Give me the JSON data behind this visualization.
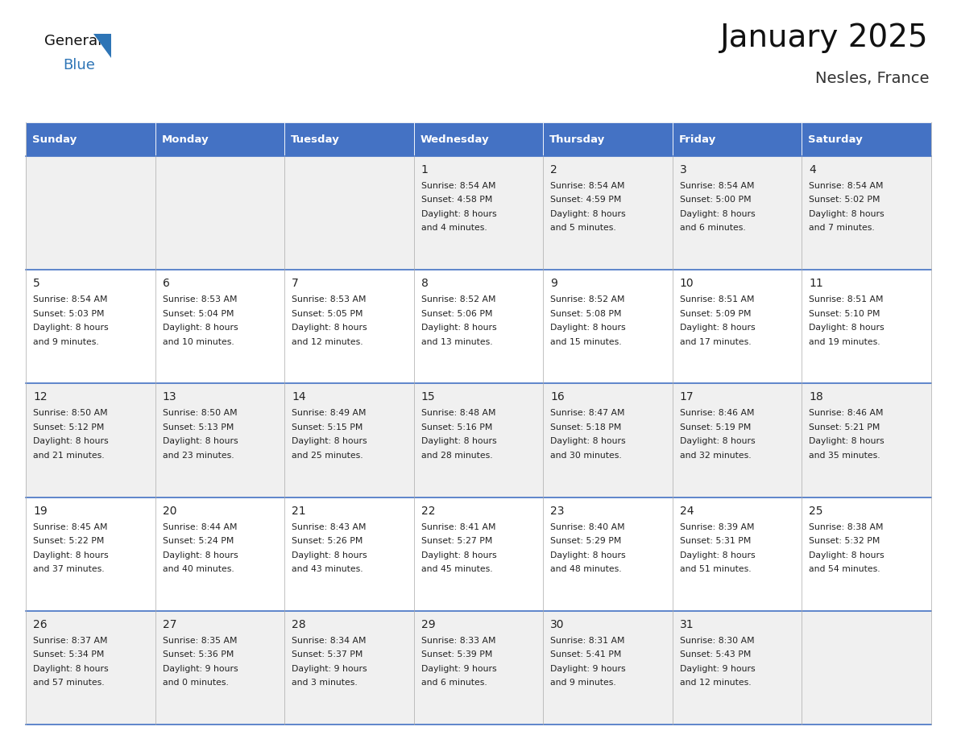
{
  "title": "January 2025",
  "subtitle": "Nesles, France",
  "days_of_week": [
    "Sunday",
    "Monday",
    "Tuesday",
    "Wednesday",
    "Thursday",
    "Friday",
    "Saturday"
  ],
  "header_bg": "#4472C4",
  "header_text": "#FFFFFF",
  "cell_bg_even": "#F0F0F0",
  "cell_bg_odd": "#FFFFFF",
  "cell_border": "#4472C4",
  "day_num_color": "#222222",
  "text_color": "#222222",
  "title_color": "#111111",
  "subtitle_color": "#333333",
  "logo_general_color": "#111111",
  "logo_blue_color": "#2e75b6",
  "calendar_data": [
    [
      null,
      null,
      null,
      {
        "day": 1,
        "sunrise": "8:54 AM",
        "sunset": "4:58 PM",
        "daylight_h": "8 hours",
        "daylight_m": "and 4 minutes."
      },
      {
        "day": 2,
        "sunrise": "8:54 AM",
        "sunset": "4:59 PM",
        "daylight_h": "8 hours",
        "daylight_m": "and 5 minutes."
      },
      {
        "day": 3,
        "sunrise": "8:54 AM",
        "sunset": "5:00 PM",
        "daylight_h": "8 hours",
        "daylight_m": "and 6 minutes."
      },
      {
        "day": 4,
        "sunrise": "8:54 AM",
        "sunset": "5:02 PM",
        "daylight_h": "8 hours",
        "daylight_m": "and 7 minutes."
      }
    ],
    [
      {
        "day": 5,
        "sunrise": "8:54 AM",
        "sunset": "5:03 PM",
        "daylight_h": "8 hours",
        "daylight_m": "and 9 minutes."
      },
      {
        "day": 6,
        "sunrise": "8:53 AM",
        "sunset": "5:04 PM",
        "daylight_h": "8 hours",
        "daylight_m": "and 10 minutes."
      },
      {
        "day": 7,
        "sunrise": "8:53 AM",
        "sunset": "5:05 PM",
        "daylight_h": "8 hours",
        "daylight_m": "and 12 minutes."
      },
      {
        "day": 8,
        "sunrise": "8:52 AM",
        "sunset": "5:06 PM",
        "daylight_h": "8 hours",
        "daylight_m": "and 13 minutes."
      },
      {
        "day": 9,
        "sunrise": "8:52 AM",
        "sunset": "5:08 PM",
        "daylight_h": "8 hours",
        "daylight_m": "and 15 minutes."
      },
      {
        "day": 10,
        "sunrise": "8:51 AM",
        "sunset": "5:09 PM",
        "daylight_h": "8 hours",
        "daylight_m": "and 17 minutes."
      },
      {
        "day": 11,
        "sunrise": "8:51 AM",
        "sunset": "5:10 PM",
        "daylight_h": "8 hours",
        "daylight_m": "and 19 minutes."
      }
    ],
    [
      {
        "day": 12,
        "sunrise": "8:50 AM",
        "sunset": "5:12 PM",
        "daylight_h": "8 hours",
        "daylight_m": "and 21 minutes."
      },
      {
        "day": 13,
        "sunrise": "8:50 AM",
        "sunset": "5:13 PM",
        "daylight_h": "8 hours",
        "daylight_m": "and 23 minutes."
      },
      {
        "day": 14,
        "sunrise": "8:49 AM",
        "sunset": "5:15 PM",
        "daylight_h": "8 hours",
        "daylight_m": "and 25 minutes."
      },
      {
        "day": 15,
        "sunrise": "8:48 AM",
        "sunset": "5:16 PM",
        "daylight_h": "8 hours",
        "daylight_m": "and 28 minutes."
      },
      {
        "day": 16,
        "sunrise": "8:47 AM",
        "sunset": "5:18 PM",
        "daylight_h": "8 hours",
        "daylight_m": "and 30 minutes."
      },
      {
        "day": 17,
        "sunrise": "8:46 AM",
        "sunset": "5:19 PM",
        "daylight_h": "8 hours",
        "daylight_m": "and 32 minutes."
      },
      {
        "day": 18,
        "sunrise": "8:46 AM",
        "sunset": "5:21 PM",
        "daylight_h": "8 hours",
        "daylight_m": "and 35 minutes."
      }
    ],
    [
      {
        "day": 19,
        "sunrise": "8:45 AM",
        "sunset": "5:22 PM",
        "daylight_h": "8 hours",
        "daylight_m": "and 37 minutes."
      },
      {
        "day": 20,
        "sunrise": "8:44 AM",
        "sunset": "5:24 PM",
        "daylight_h": "8 hours",
        "daylight_m": "and 40 minutes."
      },
      {
        "day": 21,
        "sunrise": "8:43 AM",
        "sunset": "5:26 PM",
        "daylight_h": "8 hours",
        "daylight_m": "and 43 minutes."
      },
      {
        "day": 22,
        "sunrise": "8:41 AM",
        "sunset": "5:27 PM",
        "daylight_h": "8 hours",
        "daylight_m": "and 45 minutes."
      },
      {
        "day": 23,
        "sunrise": "8:40 AM",
        "sunset": "5:29 PM",
        "daylight_h": "8 hours",
        "daylight_m": "and 48 minutes."
      },
      {
        "day": 24,
        "sunrise": "8:39 AM",
        "sunset": "5:31 PM",
        "daylight_h": "8 hours",
        "daylight_m": "and 51 minutes."
      },
      {
        "day": 25,
        "sunrise": "8:38 AM",
        "sunset": "5:32 PM",
        "daylight_h": "8 hours",
        "daylight_m": "and 54 minutes."
      }
    ],
    [
      {
        "day": 26,
        "sunrise": "8:37 AM",
        "sunset": "5:34 PM",
        "daylight_h": "8 hours",
        "daylight_m": "and 57 minutes."
      },
      {
        "day": 27,
        "sunrise": "8:35 AM",
        "sunset": "5:36 PM",
        "daylight_h": "9 hours",
        "daylight_m": "and 0 minutes."
      },
      {
        "day": 28,
        "sunrise": "8:34 AM",
        "sunset": "5:37 PM",
        "daylight_h": "9 hours",
        "daylight_m": "and 3 minutes."
      },
      {
        "day": 29,
        "sunrise": "8:33 AM",
        "sunset": "5:39 PM",
        "daylight_h": "9 hours",
        "daylight_m": "and 6 minutes."
      },
      {
        "day": 30,
        "sunrise": "8:31 AM",
        "sunset": "5:41 PM",
        "daylight_h": "9 hours",
        "daylight_m": "and 9 minutes."
      },
      {
        "day": 31,
        "sunrise": "8:30 AM",
        "sunset": "5:43 PM",
        "daylight_h": "9 hours",
        "daylight_m": "and 12 minutes."
      },
      null
    ]
  ]
}
